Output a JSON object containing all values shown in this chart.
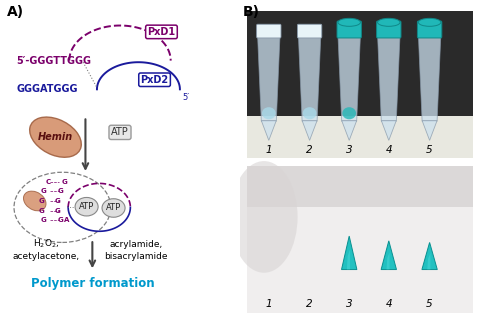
{
  "panel_A_label": "A)",
  "panel_B_label": "B)",
  "seq1": "5’-GGGTTGGG",
  "seq2": "GGGATGGG",
  "label_PxD1": "PxD1",
  "label_PxD2": "PxD2",
  "label_5prime": "5’",
  "label_hemin": "Hemin",
  "label_ATP": "ATP",
  "label_polymer": "Polymer formation",
  "color_purple": "#7B006B",
  "color_navy": "#1a1a9c",
  "color_cyan": "#0099cc",
  "color_hemin_fill": "#d4906a",
  "color_hemin_edge": "#a06040",
  "color_arrow": "#444444",
  "color_atp_fill": "#e0e0e0",
  "color_atp_edge": "#888888",
  "bg_color": "#ffffff",
  "tube_bg_top": "#3a3a3a",
  "tube_bg_bottom": "#d8d8d8",
  "tube_color": "#ccdded",
  "tube_cap_color": "#22bbbb",
  "gel_color": "#22bbbb"
}
